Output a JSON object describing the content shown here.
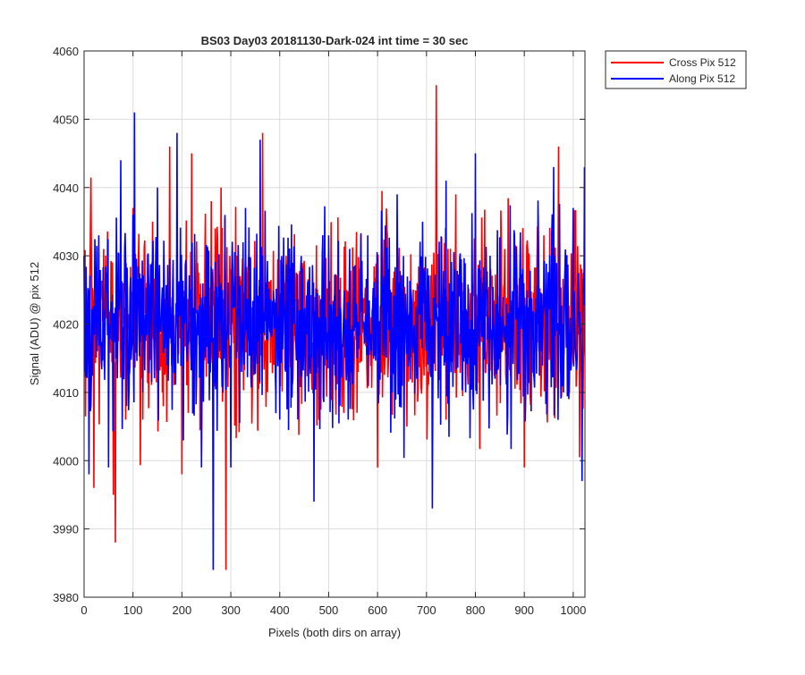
{
  "chart_data": {
    "type": "line",
    "title": "BS03 Day03 20181130-Dark-024 int time = 30 sec",
    "xlabel": "Pixels (both dirs on array)",
    "ylabel": "Signal (ADU) @ pix 512",
    "xlim": [
      0,
      1024
    ],
    "ylim": [
      3980,
      4060
    ],
    "xticks": [
      0,
      100,
      200,
      300,
      400,
      500,
      600,
      700,
      800,
      900,
      1000
    ],
    "yticks": [
      3980,
      3990,
      4000,
      4010,
      4020,
      4030,
      4040,
      4050,
      4060
    ],
    "grid": true,
    "legend_position": "outside-top-right",
    "series_summary": "noisy signal, roughly 1 sample per pixel 0-1023, mean about 4020 ADU",
    "series": [
      {
        "name": "Cross Pix 512",
        "color": "#ff0000",
        "x": [
          0,
          20,
          40,
          60,
          64,
          80,
          100,
          120,
          140,
          160,
          175,
          200,
          220,
          240,
          260,
          280,
          290,
          300,
          330,
          365,
          400,
          440,
          480,
          500,
          520,
          560,
          600,
          620,
          660,
          700,
          720,
          740,
          760,
          780,
          800,
          820,
          860,
          900,
          940,
          970,
          990,
          1010,
          1023
        ],
        "values": [
          4030,
          3996,
          4031,
          3995,
          3988,
          4026,
          4037,
          4006,
          4035,
          4010,
          4046,
          3998,
          4045,
          4001,
          4038,
          4040,
          3984,
          4028,
          4030,
          4048,
          4024,
          4027,
          4006,
          4022,
          4017,
          4013,
          3999,
          4033,
          4005,
          4025,
          4055,
          4006,
          4039,
          4011,
          4038,
          4013,
          4031,
          3999,
          4033,
          4046,
          4012,
          4025,
          4040
        ]
      },
      {
        "name": "Along Pix 512",
        "color": "#0000ff",
        "x": [
          0,
          10,
          30,
          50,
          75,
          100,
          103,
          120,
          150,
          190,
          210,
          240,
          264,
          280,
          300,
          330,
          360,
          400,
          440,
          470,
          500,
          540,
          580,
          600,
          640,
          680,
          712,
          720,
          740,
          780,
          800,
          840,
          880,
          920,
          960,
          980,
          1000,
          1018,
          1023
        ],
        "values": [
          4030,
          3998,
          4033,
          3999,
          4044,
          4036,
          4051,
          4010,
          4040,
          4048,
          4016,
          3999,
          3984,
          4026,
          3999,
          4037,
          4047,
          4006,
          4022,
          3994,
          4033,
          4006,
          4033,
          4028,
          4039,
          4012,
          3993,
          4023,
          4041,
          4010,
          4045,
          4012,
          4033,
          4012,
          4043,
          4010,
          4037,
          3997,
          4043
        ]
      }
    ]
  }
}
